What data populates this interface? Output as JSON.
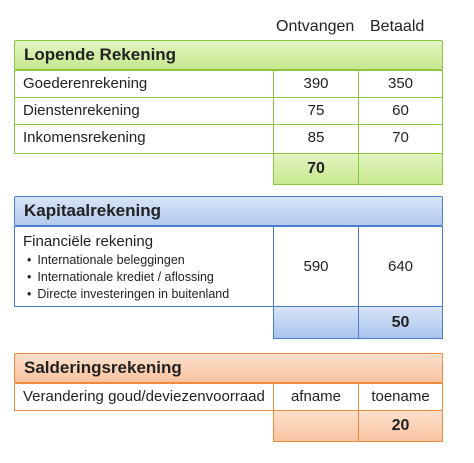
{
  "columns": {
    "received": "Ontvangen",
    "paid": "Betaald"
  },
  "current_account": {
    "title": "Lopende Rekening",
    "rows": [
      {
        "label": "Goederenrekening",
        "received": "390",
        "paid": "350"
      },
      {
        "label": "Dienstenrekening",
        "received": "75",
        "paid": "60"
      },
      {
        "label": "Inkomensrekening",
        "received": "85",
        "paid": "70"
      }
    ],
    "balance": "70",
    "color": "#8cc63f"
  },
  "capital_account": {
    "title": "Kapitaalrekening",
    "financial": {
      "label": "Financiële rekening",
      "items": [
        "Internationale beleggingen",
        "Internationale krediet / aflossing",
        "Directe investeringen in buitenland"
      ],
      "received": "590",
      "paid": "640"
    },
    "balance": "50",
    "color": "#4a7fd0"
  },
  "settlement_account": {
    "title": "Salderingsrekening",
    "row": {
      "label": "Verandering goud/deviezenvoorraad",
      "received": "afname",
      "paid": "toename"
    },
    "balance": "20",
    "color": "#f08a3c"
  }
}
